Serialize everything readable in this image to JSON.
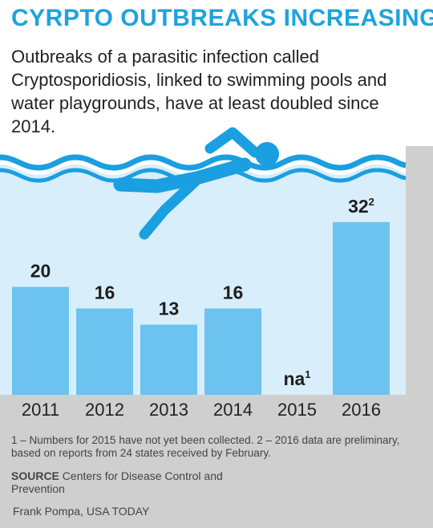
{
  "header": {
    "title": "CYRPTO OUTBREAKS INCREASING",
    "subtitle": "Outbreaks of a parasitic infection called Cryptosporidiosis, linked to swimming pools and water playgrounds, have at least doubled since 2014."
  },
  "chart_data": {
    "type": "bar",
    "categories": [
      "2011",
      "2012",
      "2013",
      "2014",
      "2015",
      "2016"
    ],
    "values": [
      20,
      16,
      13,
      16,
      null,
      32
    ],
    "value_labels": [
      "20",
      "16",
      "13",
      "16",
      "na",
      "32"
    ],
    "value_label_notes": [
      "",
      "",
      "",
      "",
      "1",
      "2"
    ],
    "title": "",
    "xlabel": "",
    "ylabel": "",
    "ylim": [
      0,
      40
    ],
    "grid": false,
    "legend": "none"
  },
  "footnotes": {
    "text": "1 – Numbers for 2015 have not yet been collected.  2 – 2016 data are preliminary, based on reports from 24 states received by February."
  },
  "source": {
    "label": "SOURCE",
    "text": "Centers for Disease Control and Prevention"
  },
  "credit": "Frank Pompa, USA TODAY",
  "colors": {
    "accent": "#1fa3dc",
    "water": "#d8eefa",
    "bar": "#6cc3f0",
    "swimmer": "#1a9fe0",
    "panel": "#cfcfcf"
  },
  "icons": {
    "swimmer": "swimmer-icon"
  }
}
